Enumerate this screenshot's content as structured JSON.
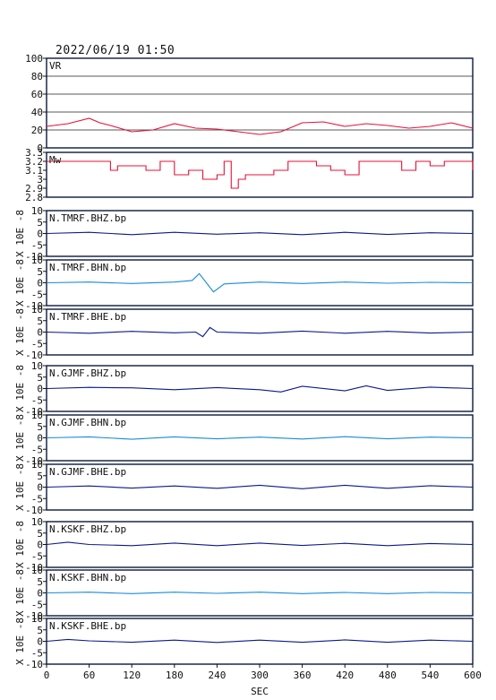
{
  "header": {
    "title": "2022/06/19 01:50"
  },
  "colors": {
    "frame": "#0a1a3a",
    "red": "#e8103a",
    "navy": "#0a1a8c",
    "cyan": "#1a8ad8"
  },
  "x_axis": {
    "label": "SEC",
    "ticks": [
      "0",
      "60",
      "120",
      "180",
      "240",
      "300",
      "360",
      "420",
      "480",
      "540",
      "600"
    ],
    "range": [
      0,
      600
    ]
  },
  "chart_data": [
    {
      "type": "line",
      "label": "VR",
      "ylim": [
        0,
        100
      ],
      "yticks": [
        "0",
        "20",
        "40",
        "60",
        "80",
        "100"
      ],
      "grid": true,
      "color": "red",
      "ylabel": "",
      "x": [
        0,
        30,
        60,
        75,
        90,
        120,
        150,
        180,
        210,
        240,
        270,
        300,
        330,
        360,
        390,
        420,
        450,
        480,
        510,
        540,
        570,
        600
      ],
      "values": [
        24,
        27,
        33,
        28,
        25,
        18,
        20,
        27,
        22,
        21,
        18,
        15,
        18,
        28,
        29,
        24,
        27,
        25,
        22,
        24,
        28,
        22
      ]
    },
    {
      "type": "line",
      "label": "Mw",
      "ylim": [
        2.8,
        3.3
      ],
      "yticks": [
        "2.8",
        "2.9",
        "3",
        "3.1",
        "3.2",
        "3.3"
      ],
      "grid": false,
      "color": "red",
      "step": true,
      "ylabel": "",
      "x": [
        0,
        20,
        40,
        60,
        80,
        90,
        100,
        120,
        140,
        160,
        180,
        200,
        220,
        240,
        250,
        260,
        270,
        280,
        300,
        320,
        340,
        360,
        380,
        400,
        420,
        440,
        460,
        480,
        500,
        520,
        540,
        560,
        580,
        600
      ],
      "values": [
        3.2,
        3.2,
        3.2,
        3.2,
        3.2,
        3.1,
        3.15,
        3.15,
        3.1,
        3.2,
        3.05,
        3.1,
        3.0,
        3.05,
        3.2,
        2.9,
        3.0,
        3.05,
        3.05,
        3.1,
        3.2,
        3.2,
        3.15,
        3.1,
        3.05,
        3.2,
        3.2,
        3.2,
        3.1,
        3.2,
        3.15,
        3.2,
        3.2,
        3.1
      ]
    },
    {
      "type": "line",
      "label": "N.TMRF.BHZ.bp",
      "ylim": [
        -10,
        10
      ],
      "yticks": [
        "-10",
        "-5",
        "0",
        "5",
        "10"
      ],
      "ylabel": "X 10E -8",
      "color": "navy",
      "x": [
        0,
        60,
        120,
        180,
        240,
        300,
        360,
        420,
        480,
        540,
        600
      ],
      "values": [
        0,
        0.5,
        -0.5,
        0.5,
        -0.3,
        0.3,
        -0.5,
        0.5,
        -0.4,
        0.3,
        0
      ]
    },
    {
      "type": "line",
      "label": "N.TMRF.BHN.bp",
      "ylim": [
        -10,
        10
      ],
      "yticks": [
        "-10",
        "-5",
        "0",
        "5",
        "10"
      ],
      "ylabel": "X 10E -8",
      "color": "cyan",
      "x": [
        0,
        60,
        120,
        180,
        205,
        215,
        225,
        235,
        250,
        300,
        360,
        420,
        480,
        540,
        600
      ],
      "values": [
        0,
        0.3,
        -0.3,
        0.3,
        1,
        4,
        0,
        -4,
        -0.5,
        0.3,
        -0.3,
        0.3,
        -0.2,
        0.2,
        0
      ]
    },
    {
      "type": "line",
      "label": "N.TMRF.BHE.bp",
      "ylim": [
        -10,
        10
      ],
      "yticks": [
        "-10",
        "-5",
        "0",
        "5",
        "10"
      ],
      "ylabel": "X 10E -8",
      "color": "navy",
      "x": [
        0,
        60,
        120,
        180,
        210,
        220,
        230,
        240,
        300,
        360,
        420,
        480,
        540,
        600
      ],
      "values": [
        0,
        -0.5,
        0.3,
        -0.3,
        0,
        -2,
        2,
        0,
        -0.5,
        0.4,
        -0.5,
        0.3,
        -0.4,
        0
      ]
    },
    {
      "type": "line",
      "label": "N.GJMF.BHZ.bp",
      "ylim": [
        -10,
        10
      ],
      "yticks": [
        "-10",
        "-5",
        "0",
        "5",
        "10"
      ],
      "ylabel": "X 10E -8",
      "color": "navy",
      "x": [
        0,
        60,
        120,
        180,
        240,
        300,
        330,
        360,
        420,
        450,
        480,
        540,
        600
      ],
      "values": [
        0,
        0.5,
        0.3,
        -0.5,
        0.4,
        -0.5,
        -1.5,
        1,
        -1,
        1.2,
        -0.8,
        0.6,
        0
      ]
    },
    {
      "type": "line",
      "label": "N.GJMF.BHN.bp",
      "ylim": [
        -10,
        10
      ],
      "yticks": [
        "-10",
        "-5",
        "0",
        "5",
        "10"
      ],
      "ylabel": "X 10E -8",
      "color": "cyan",
      "x": [
        0,
        60,
        120,
        180,
        240,
        300,
        360,
        420,
        480,
        540,
        600
      ],
      "values": [
        0,
        0.4,
        -0.6,
        0.4,
        -0.4,
        0.3,
        -0.5,
        0.5,
        -0.4,
        0.3,
        0
      ]
    },
    {
      "type": "line",
      "label": "N.GJMF.BHE.bp",
      "ylim": [
        -10,
        10
      ],
      "yticks": [
        "-10",
        "-5",
        "0",
        "5",
        "10"
      ],
      "ylabel": "X 10E -8",
      "color": "navy",
      "x": [
        0,
        60,
        120,
        180,
        240,
        300,
        360,
        420,
        480,
        540,
        600
      ],
      "values": [
        0,
        0.5,
        -0.4,
        0.5,
        -0.5,
        0.8,
        -0.7,
        0.8,
        -0.5,
        0.6,
        0
      ]
    },
    {
      "type": "line",
      "label": "N.KSKF.BHZ.bp",
      "ylim": [
        -10,
        10
      ],
      "yticks": [
        "-10",
        "-5",
        "0",
        "5",
        "10"
      ],
      "ylabel": "X 10E -8",
      "color": "navy",
      "x": [
        0,
        30,
        60,
        120,
        180,
        240,
        300,
        360,
        420,
        480,
        540,
        600
      ],
      "values": [
        0,
        1,
        0,
        -0.5,
        0.6,
        -0.5,
        0.6,
        -0.4,
        0.5,
        -0.5,
        0.4,
        0
      ]
    },
    {
      "type": "line",
      "label": "N.KSKF.BHN.bp",
      "ylim": [
        -10,
        10
      ],
      "yticks": [
        "-10",
        "-5",
        "0",
        "5",
        "10"
      ],
      "ylabel": "X 10E -8",
      "color": "cyan",
      "x": [
        0,
        60,
        120,
        180,
        240,
        300,
        360,
        420,
        480,
        540,
        600
      ],
      "values": [
        0,
        0.3,
        -0.3,
        0.3,
        -0.2,
        0.3,
        -0.3,
        0.2,
        -0.3,
        0.2,
        0
      ]
    },
    {
      "type": "line",
      "label": "N.KSKF.BHE.bp",
      "ylim": [
        -10,
        10
      ],
      "yticks": [
        "-10",
        "-5",
        "0",
        "5",
        "10"
      ],
      "ylabel": "X 10E -8",
      "color": "navy",
      "x": [
        0,
        30,
        60,
        120,
        180,
        240,
        300,
        360,
        420,
        480,
        540,
        600
      ],
      "values": [
        0,
        0.8,
        0.2,
        -0.4,
        0.5,
        -0.5,
        0.5,
        -0.4,
        0.6,
        -0.4,
        0.5,
        0
      ]
    }
  ]
}
